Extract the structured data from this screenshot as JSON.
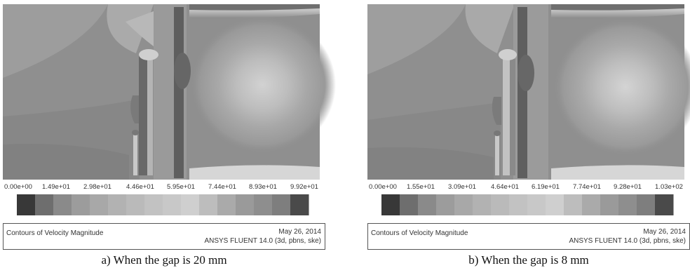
{
  "chart_data": [
    {
      "type": "heatmap",
      "title": "Contours of Velocity Magnitude",
      "caption": "a) When the gap is 20 mm",
      "tick_labels": [
        "0.00e+00",
        "1.49e+01",
        "2.98e+01",
        "4.46e+01",
        "5.95e+01",
        "7.44e+01",
        "8.93e+01",
        "9.92e+01"
      ],
      "colorbar_range": [
        0,
        99.2
      ],
      "colorbar_levels": 16,
      "colormap": "grayscale",
      "date": "May 26, 2014",
      "software": "ANSYS FLUENT 14.0 (3d, pbns, ske)"
    },
    {
      "type": "heatmap",
      "title": "Contours of Velocity Magnitude",
      "caption": "b) When the gap is 8 mm",
      "tick_labels": [
        "0.00e+00",
        "1.55e+01",
        "3.09e+01",
        "4.64e+01",
        "6.19e+01",
        "7.74e+01",
        "9.28e+01",
        "1.03e+02"
      ],
      "colorbar_range": [
        0,
        103
      ],
      "colorbar_levels": 16,
      "colormap": "grayscale",
      "date": "May 26, 2014",
      "software": "ANSYS FLUENT 14.0 (3d, pbns, ske)"
    }
  ]
}
